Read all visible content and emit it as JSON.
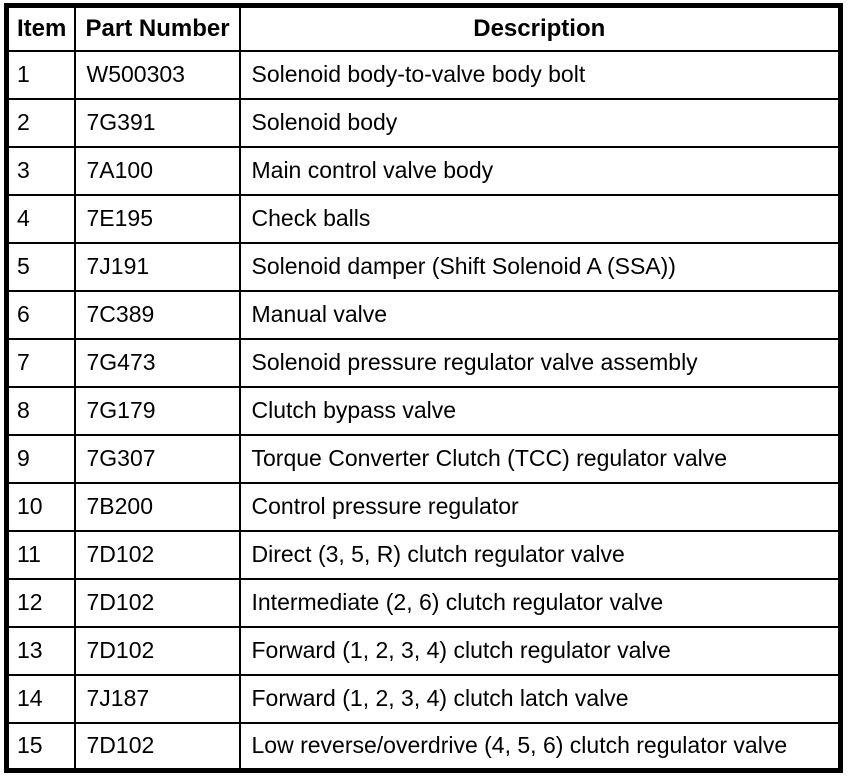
{
  "table": {
    "columns": [
      {
        "key": "item",
        "label": "Item"
      },
      {
        "key": "part_number",
        "label": "Part Number"
      },
      {
        "key": "description",
        "label": "Description"
      }
    ],
    "rows": [
      {
        "item": "1",
        "part_number": "W500303",
        "description": "Solenoid body-to-valve body bolt"
      },
      {
        "item": "2",
        "part_number": "7G391",
        "description": "Solenoid body"
      },
      {
        "item": "3",
        "part_number": "7A100",
        "description": "Main control valve body"
      },
      {
        "item": "4",
        "part_number": "7E195",
        "description": "Check balls"
      },
      {
        "item": "5",
        "part_number": "7J191",
        "description": "Solenoid damper (Shift Solenoid A (SSA))"
      },
      {
        "item": "6",
        "part_number": "7C389",
        "description": "Manual valve"
      },
      {
        "item": "7",
        "part_number": "7G473",
        "description": "Solenoid pressure regulator valve assembly"
      },
      {
        "item": "8",
        "part_number": "7G179",
        "description": "Clutch bypass valve"
      },
      {
        "item": "9",
        "part_number": "7G307",
        "description": "Torque Converter Clutch (TCC) regulator valve"
      },
      {
        "item": "10",
        "part_number": "7B200",
        "description": "Control pressure regulator"
      },
      {
        "item": "11",
        "part_number": "7D102",
        "description": "Direct (3, 5, R) clutch regulator valve"
      },
      {
        "item": "12",
        "part_number": "7D102",
        "description": "Intermediate (2, 6) clutch regulator valve"
      },
      {
        "item": "13",
        "part_number": "7D102",
        "description": "Forward (1, 2, 3, 4) clutch regulator valve"
      },
      {
        "item": "14",
        "part_number": "7J187",
        "description": "Forward (1, 2, 3, 4) clutch latch valve"
      },
      {
        "item": "15",
        "part_number": "7D102",
        "description": "Low reverse/overdrive (4, 5, 6) clutch regulator valve"
      }
    ],
    "colors": {
      "border": "#000000",
      "text": "#000000",
      "background": "#ffffff"
    }
  }
}
